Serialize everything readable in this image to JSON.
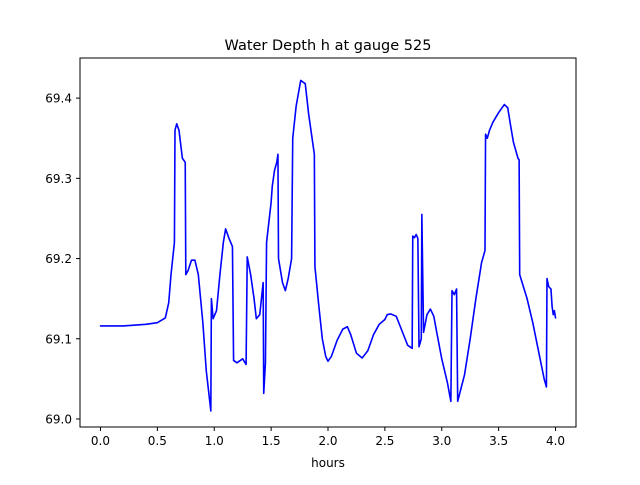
{
  "chart_data": {
    "type": "line",
    "title": "Water Depth h at gauge 525",
    "xlabel": "hours",
    "ylabel": "",
    "xlim": [
      -0.18,
      4.18
    ],
    "ylim": [
      68.99,
      69.45
    ],
    "xticks": [
      0.0,
      0.5,
      1.0,
      1.5,
      2.0,
      2.5,
      3.0,
      3.5,
      4.0
    ],
    "xtick_labels": [
      "0.0",
      "0.5",
      "1.0",
      "1.5",
      "2.0",
      "2.5",
      "3.0",
      "3.5",
      "4.0"
    ],
    "yticks": [
      69.0,
      69.1,
      69.2,
      69.3,
      69.4
    ],
    "ytick_labels": [
      "69.0",
      "69.1",
      "69.2",
      "69.3",
      "69.4"
    ],
    "grid": false,
    "series": [
      {
        "color": "#0000ff",
        "points": [
          [
            0.0,
            69.116
          ],
          [
            0.2,
            69.116
          ],
          [
            0.4,
            69.118
          ],
          [
            0.5,
            69.12
          ],
          [
            0.57,
            69.126
          ],
          [
            0.6,
            69.145
          ],
          [
            0.62,
            69.18
          ],
          [
            0.65,
            69.22
          ],
          [
            0.655,
            69.36
          ],
          [
            0.67,
            69.368
          ],
          [
            0.69,
            69.36
          ],
          [
            0.72,
            69.325
          ],
          [
            0.745,
            69.32
          ],
          [
            0.75,
            69.18
          ],
          [
            0.77,
            69.185
          ],
          [
            0.8,
            69.198
          ],
          [
            0.83,
            69.198
          ],
          [
            0.86,
            69.18
          ],
          [
            0.9,
            69.12
          ],
          [
            0.93,
            69.06
          ],
          [
            0.97,
            69.01
          ],
          [
            0.975,
            69.15
          ],
          [
            0.99,
            69.125
          ],
          [
            1.02,
            69.135
          ],
          [
            1.05,
            69.18
          ],
          [
            1.08,
            69.22
          ],
          [
            1.1,
            69.237
          ],
          [
            1.13,
            69.225
          ],
          [
            1.16,
            69.215
          ],
          [
            1.17,
            69.073
          ],
          [
            1.2,
            69.07
          ],
          [
            1.25,
            69.075
          ],
          [
            1.28,
            69.068
          ],
          [
            1.29,
            69.202
          ],
          [
            1.32,
            69.18
          ],
          [
            1.35,
            69.15
          ],
          [
            1.37,
            69.125
          ],
          [
            1.4,
            69.13
          ],
          [
            1.43,
            69.17
          ],
          [
            1.435,
            69.032
          ],
          [
            1.45,
            69.07
          ],
          [
            1.46,
            69.22
          ],
          [
            1.5,
            69.27
          ],
          [
            1.51,
            69.29
          ],
          [
            1.53,
            69.31
          ],
          [
            1.55,
            69.32
          ],
          [
            1.56,
            69.33
          ],
          [
            1.565,
            69.2
          ],
          [
            1.6,
            69.17
          ],
          [
            1.625,
            69.16
          ],
          [
            1.65,
            69.175
          ],
          [
            1.68,
            69.2
          ],
          [
            1.69,
            69.35
          ],
          [
            1.72,
            69.39
          ],
          [
            1.745,
            69.41
          ],
          [
            1.76,
            69.422
          ],
          [
            1.8,
            69.418
          ],
          [
            1.83,
            69.38
          ],
          [
            1.85,
            69.36
          ],
          [
            1.88,
            69.33
          ],
          [
            1.885,
            69.19
          ],
          [
            1.92,
            69.14
          ],
          [
            1.95,
            69.1
          ],
          [
            1.98,
            69.078
          ],
          [
            2.0,
            69.072
          ],
          [
            2.03,
            69.078
          ],
          [
            2.08,
            69.098
          ],
          [
            2.13,
            69.112
          ],
          [
            2.17,
            69.115
          ],
          [
            2.2,
            69.105
          ],
          [
            2.25,
            69.082
          ],
          [
            2.3,
            69.076
          ],
          [
            2.35,
            69.085
          ],
          [
            2.4,
            69.105
          ],
          [
            2.45,
            69.118
          ],
          [
            2.5,
            69.124
          ],
          [
            2.52,
            69.13
          ],
          [
            2.55,
            69.131
          ],
          [
            2.6,
            69.128
          ],
          [
            2.65,
            69.11
          ],
          [
            2.7,
            69.092
          ],
          [
            2.74,
            69.088
          ],
          [
            2.745,
            69.228
          ],
          [
            2.76,
            69.226
          ],
          [
            2.775,
            69.23
          ],
          [
            2.79,
            69.225
          ],
          [
            2.8,
            69.09
          ],
          [
            2.82,
            69.1
          ],
          [
            2.825,
            69.255
          ],
          [
            2.84,
            69.108
          ],
          [
            2.87,
            69.13
          ],
          [
            2.9,
            69.137
          ],
          [
            2.93,
            69.128
          ],
          [
            2.96,
            69.105
          ],
          [
            3.0,
            69.075
          ],
          [
            3.05,
            69.045
          ],
          [
            3.08,
            69.022
          ],
          [
            3.09,
            69.16
          ],
          [
            3.11,
            69.155
          ],
          [
            3.13,
            69.162
          ],
          [
            3.14,
            69.022
          ],
          [
            3.2,
            69.055
          ],
          [
            3.25,
            69.1
          ],
          [
            3.3,
            69.15
          ],
          [
            3.35,
            69.195
          ],
          [
            3.38,
            69.21
          ],
          [
            3.385,
            69.355
          ],
          [
            3.4,
            69.35
          ],
          [
            3.42,
            69.36
          ],
          [
            3.45,
            69.37
          ],
          [
            3.5,
            69.382
          ],
          [
            3.55,
            69.392
          ],
          [
            3.58,
            69.388
          ],
          [
            3.6,
            69.37
          ],
          [
            3.63,
            69.345
          ],
          [
            3.67,
            69.325
          ],
          [
            3.68,
            69.323
          ],
          [
            3.685,
            69.18
          ],
          [
            3.75,
            69.15
          ],
          [
            3.8,
            69.12
          ],
          [
            3.85,
            69.085
          ],
          [
            3.9,
            69.05
          ],
          [
            3.92,
            69.04
          ],
          [
            3.925,
            69.175
          ],
          [
            3.94,
            69.165
          ],
          [
            3.96,
            69.162
          ],
          [
            3.97,
            69.14
          ],
          [
            3.98,
            69.13
          ],
          [
            3.99,
            69.135
          ],
          [
            4.0,
            69.126
          ]
        ]
      }
    ]
  }
}
